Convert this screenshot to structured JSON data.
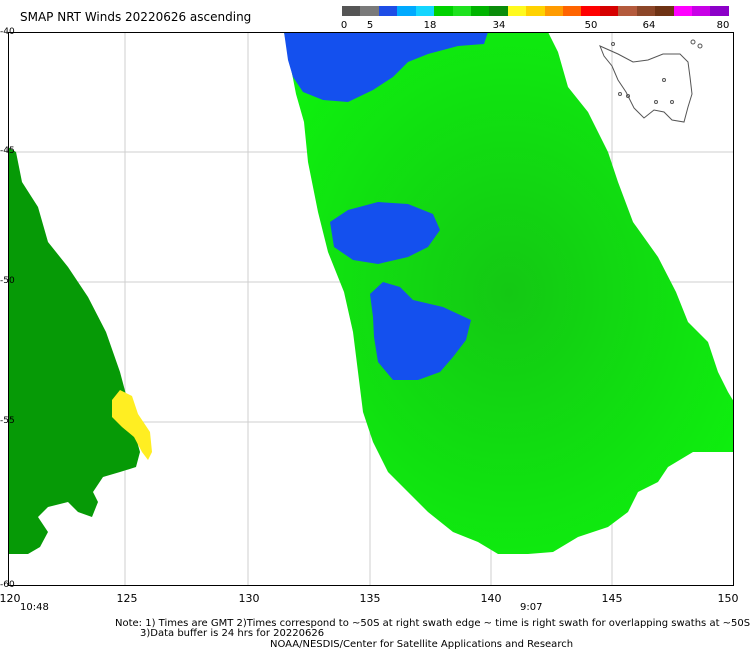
{
  "title": "SMAP NRT Winds 20220626 ascending",
  "colorbar": {
    "colors": [
      "#555555",
      "#7a7a7a",
      "#1e4de6",
      "#00aaff",
      "#14d6ff",
      "#00d200",
      "#1ee21e",
      "#00b400",
      "#0a8c0a",
      "#fffa1e",
      "#ffd200",
      "#ff9b00",
      "#ff6400",
      "#ff0000",
      "#d60000",
      "#b45a3c",
      "#8c4628",
      "#6e3214",
      "#ff00ff",
      "#c800e6",
      "#8c00c8"
    ],
    "labels": [
      "0",
      "5",
      "18",
      "34",
      "50",
      "64",
      "80"
    ]
  },
  "axes": {
    "x_ticks": [
      "120",
      "125",
      "130",
      "135",
      "140",
      "145",
      "150"
    ],
    "y_ticks": [
      "-40",
      "-45",
      "-50",
      "-55",
      "-60"
    ]
  },
  "times": {
    "left": "10:48",
    "middle": "9:07"
  },
  "notes": {
    "line1": "Note: 1) Times are GMT 2)Times correspond to ~50S at right swath edge ~ time is right swath for overlapping swaths at ~50S",
    "line2": "3)Data buffer is 24 hrs for 20220626",
    "credit": "NOAA/NESDIS/Center for Satellite Applications and Research"
  }
}
